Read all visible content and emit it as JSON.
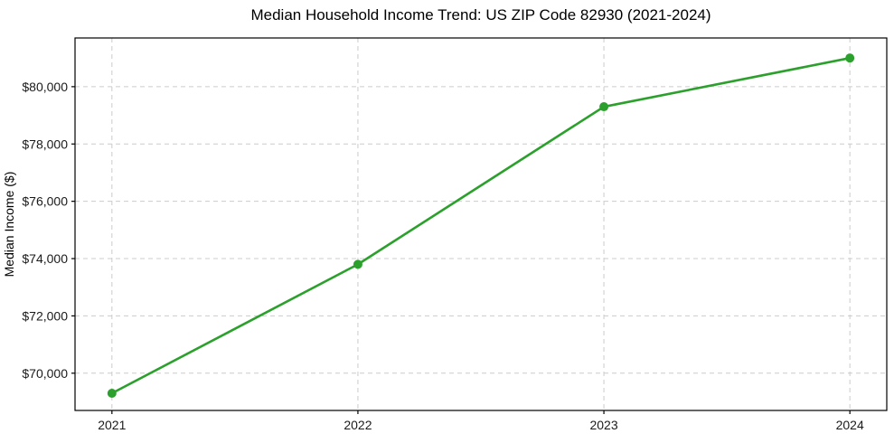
{
  "chart_data": {
    "type": "line",
    "title": "Median Household Income Trend: US ZIP Code 82930 (2021-2024)",
    "xlabel": "",
    "ylabel": "Median Income ($)",
    "x": [
      2021,
      2022,
      2023,
      2024
    ],
    "series": [
      {
        "name": "Median Household Income",
        "values": [
          69300,
          73800,
          79300,
          81000
        ]
      }
    ],
    "x_ticks": [
      2021,
      2022,
      2023,
      2024
    ],
    "x_tick_labels": [
      "2021",
      "2022",
      "2023",
      "2024"
    ],
    "y_ticks": [
      70000,
      72000,
      74000,
      76000,
      78000,
      80000
    ],
    "y_tick_labels": [
      "$70,000",
      "$72,000",
      "$74,000",
      "$76,000",
      "$78,000",
      "$80,000"
    ],
    "xlim": [
      2020.85,
      2024.15
    ],
    "ylim": [
      68700,
      81700
    ],
    "grid": true,
    "grid_style": "dashed",
    "legend": false,
    "colors": {
      "line": "#2ca02c",
      "marker": "#2ca02c",
      "grid": "#cccccc",
      "spine": "#000000",
      "background": "#ffffff"
    },
    "marker": "circle",
    "marker_radius": 5,
    "line_width": 2.6
  }
}
